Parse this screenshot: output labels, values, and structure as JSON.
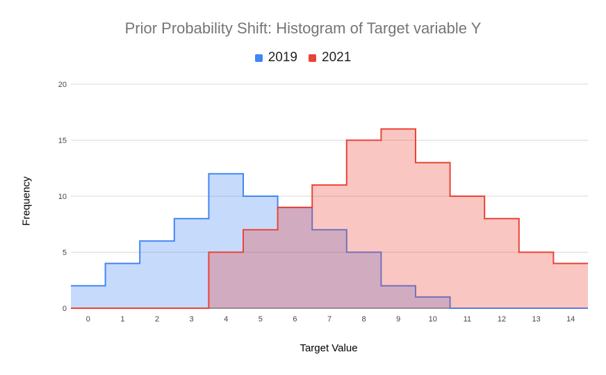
{
  "chart_data": {
    "type": "area",
    "title": "Prior Probability Shift: Histogram of Target variable Y",
    "xlabel": "Target Value",
    "ylabel": "Frequency",
    "ylim": [
      0,
      20
    ],
    "y_ticks": [
      "0",
      "5",
      "10",
      "15",
      "20"
    ],
    "x": [
      "0",
      "1",
      "2",
      "3",
      "4",
      "5",
      "6",
      "7",
      "8",
      "9",
      "10",
      "11",
      "12",
      "13",
      "14"
    ],
    "series": [
      {
        "name": "2019",
        "color": "#4285f4",
        "fill": "rgba(66,133,244,0.30)",
        "values": [
          2,
          4,
          6,
          8,
          12,
          10,
          9,
          7,
          5,
          2,
          1,
          0,
          0,
          0,
          0
        ]
      },
      {
        "name": "2021",
        "color": "#ea4335",
        "fill": "rgba(234,67,53,0.30)",
        "values": [
          0,
          0,
          0,
          0,
          5,
          7,
          9,
          11,
          15,
          16,
          13,
          10,
          8,
          5,
          4
        ]
      }
    ],
    "grid": true,
    "legend": "top"
  }
}
